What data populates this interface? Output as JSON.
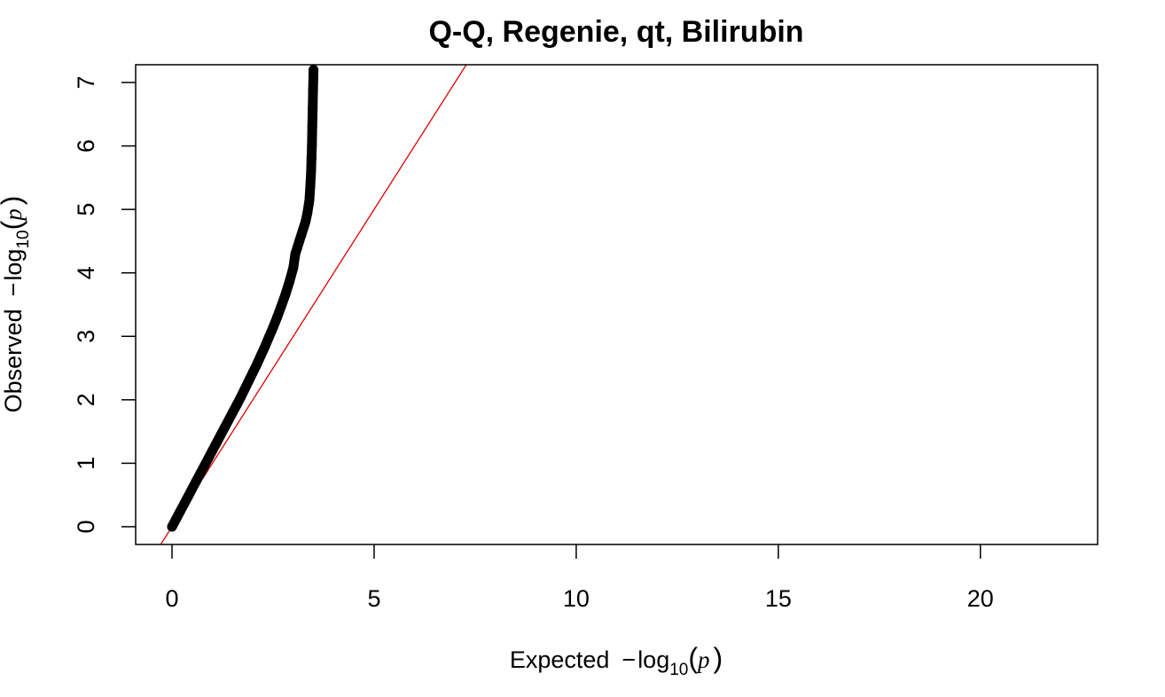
{
  "chart_data": {
    "type": "scatter",
    "title": "Q-Q, Regenie, qt, Bilirubin",
    "xlabel": {
      "prefix": "Expected",
      "minus": "−",
      "log": "log",
      "sub": "10",
      "open": "(",
      "var": "p",
      "close": ")"
    },
    "ylabel": {
      "prefix": "Observed",
      "minus": "−",
      "log": "log",
      "sub": "10",
      "open": "(",
      "var": "p",
      "close": ")"
    },
    "xlim": [
      -0.9,
      22.9
    ],
    "ylim": [
      -0.28,
      7.28
    ],
    "xticks": [
      0,
      5,
      10,
      15,
      20
    ],
    "xtick_labels": [
      "0",
      "5",
      "10",
      "15",
      "20"
    ],
    "yticks": [
      0,
      1,
      2,
      3,
      4,
      5,
      6,
      7
    ],
    "ytick_labels": [
      "0",
      "1",
      "2",
      "3",
      "4",
      "5",
      "6",
      "7"
    ],
    "grid": false,
    "points_color": "#000000",
    "reference_line": {
      "slope": 1,
      "intercept": 0,
      "color": "#dd0000"
    },
    "series": [
      {
        "x": [
          0.0,
          0.1,
          0.2,
          0.3,
          0.4,
          0.5,
          0.6,
          0.7,
          0.8,
          0.9,
          1.0,
          1.1,
          1.2,
          1.3,
          1.4,
          1.5,
          1.6,
          1.7,
          1.8,
          1.9,
          2.0,
          2.1,
          2.2,
          2.3,
          2.4,
          2.5,
          2.6,
          2.7,
          2.8,
          2.9,
          3.0,
          3.05,
          3.1,
          3.15,
          3.2,
          3.25,
          3.3,
          3.35,
          3.4,
          3.42,
          3.44,
          3.45,
          3.46,
          3.47,
          3.48,
          3.49,
          3.5
        ],
        "y": [
          0.0,
          0.12,
          0.24,
          0.36,
          0.48,
          0.6,
          0.72,
          0.84,
          0.96,
          1.08,
          1.2,
          1.32,
          1.44,
          1.56,
          1.68,
          1.8,
          1.92,
          2.04,
          2.17,
          2.3,
          2.43,
          2.56,
          2.7,
          2.84,
          2.99,
          3.14,
          3.3,
          3.47,
          3.65,
          3.85,
          4.08,
          4.3,
          4.4,
          4.5,
          4.6,
          4.7,
          4.8,
          4.95,
          5.15,
          5.35,
          5.6,
          5.8,
          6.0,
          6.3,
          6.6,
          6.9,
          7.2
        ]
      }
    ]
  }
}
